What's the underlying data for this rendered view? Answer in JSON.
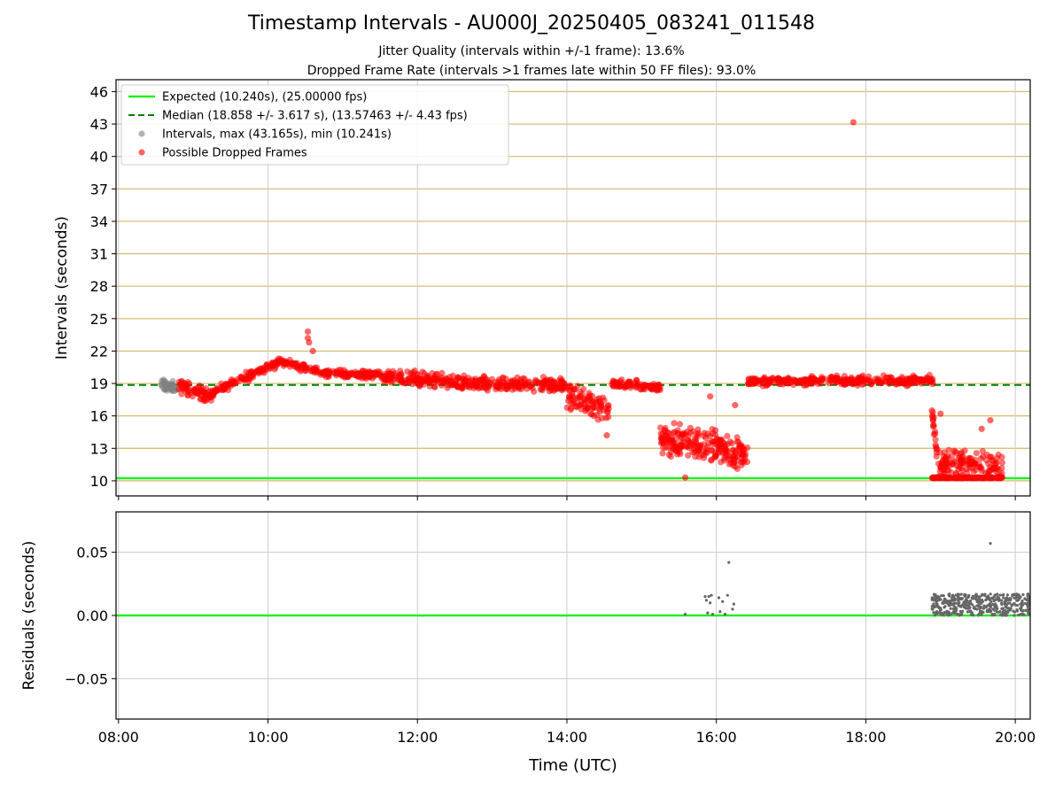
{
  "title": "Timestamp Intervals - AU000J_20250405_083241_011548",
  "subtitle_lines": [
    "Jitter Quality (intervals within +/-1 frame): 13.6%",
    "Dropped Frame Rate (intervals >1 frames late within 50 FF files): 93.0%"
  ],
  "colors": {
    "expected": "#22ee22",
    "median": "#008000",
    "intervals": "#808080",
    "dropped": "#ff0000",
    "hgrid": "#d4b86a",
    "vgrid": "#cccccc"
  },
  "chart_data": [
    {
      "type": "scatter",
      "ylabel": "Intervals (seconds)",
      "ylim": [
        8.6,
        47.1
      ],
      "xlim": [
        "07:58",
        "20:12"
      ],
      "yticks": [
        "10",
        "13",
        "16",
        "19",
        "22",
        "25",
        "28",
        "31",
        "34",
        "37",
        "40",
        "43",
        "46"
      ],
      "grid": true,
      "legend_position": "upper-left",
      "legend": [
        "Expected (10.240s), (25.00000 fps)",
        "Median (18.858 +/- 3.617 s), (13.57463 +/- 4.43 fps)",
        "Intervals, max (43.165s), min (10.241s)",
        "Possible Dropped Frames"
      ],
      "expected_interval": 10.24,
      "median_interval": 18.858,
      "interval_segments": [
        {
          "name": "Intervals",
          "color": "gray",
          "x_start": "08:33",
          "x_end": "08:48",
          "y_from": 18.9,
          "y_to": 18.5,
          "spread": 0.8,
          "count": 40
        },
        {
          "name": "Possible Dropped Frames",
          "x_start": "08:48",
          "x_end": "09:15",
          "y_from": 18.8,
          "y_to": 17.8,
          "spread": 0.9,
          "count": 70
        },
        {
          "name": "Possible Dropped Frames",
          "x_start": "09:15",
          "x_end": "10:10",
          "y_from": 18.2,
          "y_to": 21.0,
          "spread": 0.6,
          "count": 120
        },
        {
          "name": "Possible Dropped Frames",
          "x_start": "10:10",
          "x_end": "10:40",
          "y_from": 21.0,
          "y_to": 20.2,
          "spread": 0.5,
          "count": 60
        },
        {
          "name": "Possible Dropped Frames",
          "x_start": "10:40",
          "x_end": "11:30",
          "y_from": 20.0,
          "y_to": 19.8,
          "spread": 0.5,
          "count": 110
        },
        {
          "name": "Possible Dropped Frames",
          "x_start": "11:30",
          "x_end": "12:30",
          "y_from": 19.6,
          "y_to": 19.2,
          "spread": 0.9,
          "count": 150
        },
        {
          "name": "Possible Dropped Frames",
          "x_start": "12:30",
          "x_end": "14:00",
          "y_from": 19.0,
          "y_to": 18.8,
          "spread": 1.0,
          "count": 220
        },
        {
          "name": "Possible Dropped Frames",
          "x_start": "14:00",
          "x_end": "14:35",
          "y_from": 17.8,
          "y_to": 16.5,
          "spread": 1.8,
          "count": 90
        },
        {
          "name": "Possible Dropped Frames",
          "x_start": "14:35",
          "x_end": "15:15",
          "y_from": 19.0,
          "y_to": 18.6,
          "spread": 0.6,
          "count": 90
        },
        {
          "name": "Possible Dropped Frames",
          "x_start": "15:15",
          "x_end": "16:25",
          "y_from": 14.0,
          "y_to": 12.5,
          "spread": 2.2,
          "count": 240
        },
        {
          "name": "Possible Dropped Frames",
          "x_start": "16:25",
          "x_end": "18:55",
          "y_from": 19.2,
          "y_to": 19.3,
          "spread": 0.6,
          "count": 320
        },
        {
          "name": "Possible Dropped Frames",
          "x_start": "18:53",
          "x_end": "18:58",
          "y_from": 16.5,
          "y_to": 12.0,
          "spread": 1.5,
          "count": 20
        },
        {
          "name": "Possible Dropped Frames",
          "x_start": "18:58",
          "x_end": "19:50",
          "y_from": 11.5,
          "y_to": 11.5,
          "spread": 1.8,
          "count": 140
        },
        {
          "name": "Possible Dropped Frames",
          "x_start": "18:53",
          "x_end": "19:50",
          "y_from": 10.24,
          "y_to": 10.24,
          "spread": 0.05,
          "count": 180
        }
      ],
      "outliers": [
        {
          "x": "17:50",
          "y": 43.165
        },
        {
          "x": "10:32",
          "y": 23.8
        },
        {
          "x": "10:32",
          "y": 23.2
        },
        {
          "x": "10:33",
          "y": 22.8
        },
        {
          "x": "10:36",
          "y": 22.0
        },
        {
          "x": "14:32",
          "y": 14.2
        },
        {
          "x": "15:55",
          "y": 17.8
        },
        {
          "x": "16:15",
          "y": 17.0
        },
        {
          "x": "15:35",
          "y": 10.3
        },
        {
          "x": "19:40",
          "y": 15.6
        },
        {
          "x": "19:33",
          "y": 14.8
        },
        {
          "x": "19:00",
          "y": 16.2
        }
      ]
    },
    {
      "type": "scatter",
      "xlabel": "Time (UTC)",
      "ylabel": "Residuals (seconds)",
      "ylim": [
        -0.082,
        0.082
      ],
      "xlim": [
        "07:58",
        "20:12"
      ],
      "yticks": [
        "0.05",
        "0.00",
        "−0.05"
      ],
      "xticks": [
        "08:00",
        "10:00",
        "12:00",
        "14:00",
        "16:00",
        "18:00",
        "20:00"
      ],
      "grid": true,
      "residual_baseline": 0.0,
      "residual_points": [
        {
          "x": "15:35",
          "y": 0.001
        },
        {
          "x": "15:51",
          "y": 0.015
        },
        {
          "x": "15:52",
          "y": 0.012
        },
        {
          "x": "15:53",
          "y": 0.002
        },
        {
          "x": "15:54",
          "y": 0.015
        },
        {
          "x": "15:55",
          "y": 0.01
        },
        {
          "x": "15:56",
          "y": 0.016
        },
        {
          "x": "15:57",
          "y": 0.001
        },
        {
          "x": "16:02",
          "y": 0.014
        },
        {
          "x": "16:03",
          "y": 0.003
        },
        {
          "x": "16:05",
          "y": 0.011
        },
        {
          "x": "16:07",
          "y": 0.001
        },
        {
          "x": "16:09",
          "y": 0.016
        },
        {
          "x": "16:10",
          "y": 0.042
        },
        {
          "x": "16:13",
          "y": 0.005
        },
        {
          "x": "16:14",
          "y": 0.009
        },
        {
          "x": "19:40",
          "y": 0.057
        }
      ],
      "residual_cluster": {
        "x_start": "18:53",
        "x_end": "20:12",
        "y_min": 0.0,
        "y_max": 0.017,
        "count": 420
      }
    }
  ]
}
